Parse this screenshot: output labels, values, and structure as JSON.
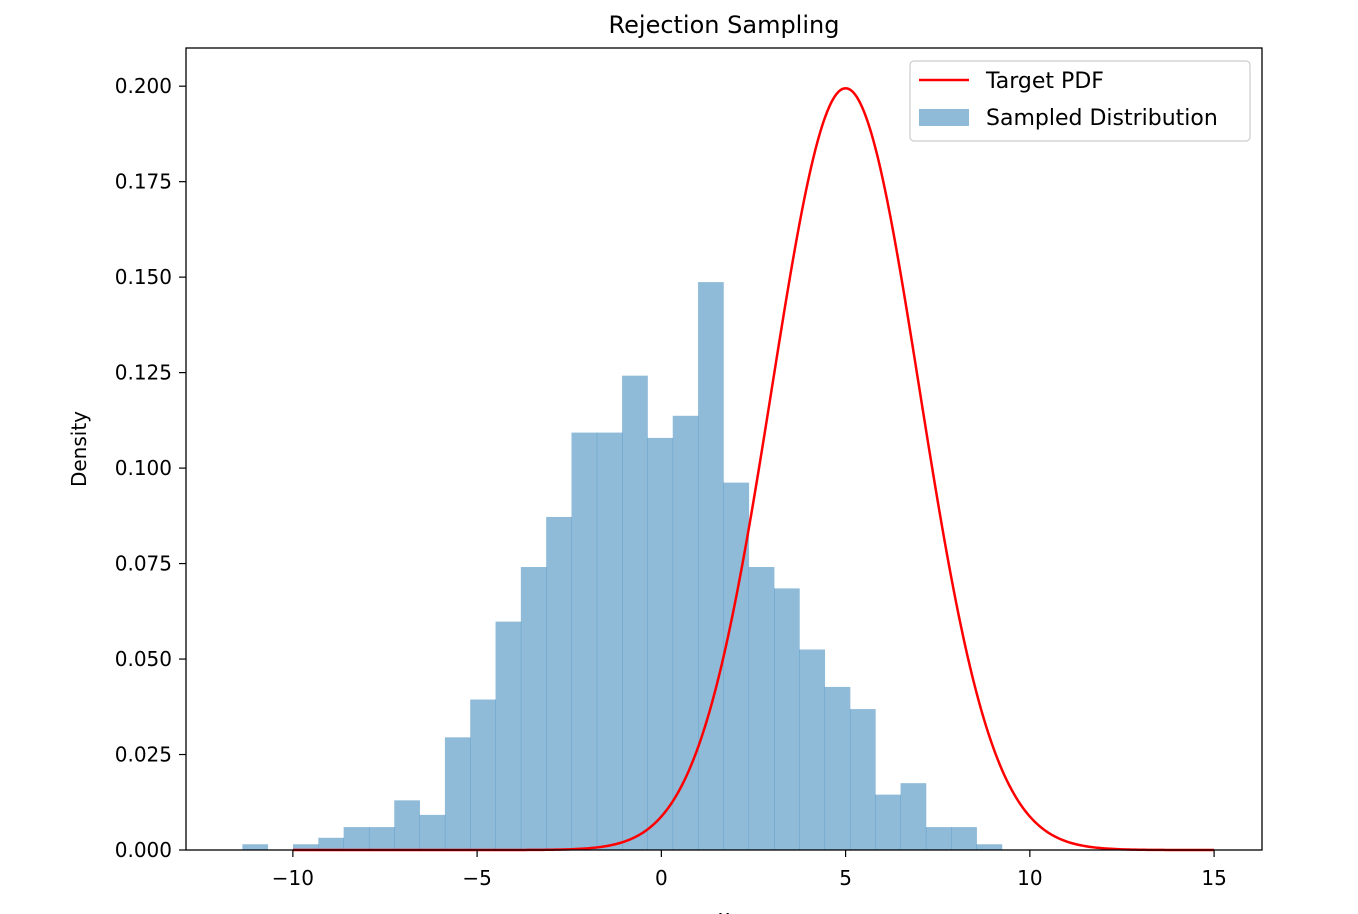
{
  "chart_data": {
    "type": "bar",
    "title": "Rejection Sampling",
    "xlabel": "x",
    "ylabel": "Density",
    "xlim": [
      -12.9,
      16.3
    ],
    "ylim": [
      0,
      0.21
    ],
    "grid": false,
    "legend_position": "top-right",
    "x_ticks": [
      -10,
      -5,
      0,
      5,
      10,
      15
    ],
    "x_tick_labels": [
      "−10",
      "−5",
      "0",
      "5",
      "10",
      "15"
    ],
    "y_ticks": [
      0,
      0.025,
      0.05,
      0.075,
      0.1,
      0.125,
      0.15,
      0.175,
      0.2
    ],
    "y_tick_labels": [
      "0.000",
      "0.025",
      "0.050",
      "0.075",
      "0.100",
      "0.125",
      "0.150",
      "0.175",
      "0.200"
    ],
    "histogram": {
      "name": "Sampled Distribution",
      "color": "#1f77b4",
      "opacity": 0.5,
      "bin_start": -11.37,
      "bin_width": 0.687,
      "values": [
        0.0015,
        0,
        0.0015,
        0.0032,
        0.006,
        0.006,
        0.013,
        0.0092,
        0.0295,
        0.0394,
        0.0598,
        0.0741,
        0.0872,
        0.1093,
        0.1093,
        0.1242,
        0.1079,
        0.1137,
        0.1487,
        0.0962,
        0.0741,
        0.0685,
        0.0525,
        0.0427,
        0.0369,
        0.0145,
        0.0175,
        0.006,
        0.006,
        0.0015
      ]
    },
    "curve": {
      "name": "Target PDF",
      "color": "#ff0000",
      "function": "normal",
      "mean": 5,
      "std": 2,
      "x_range": [
        -10,
        15
      ]
    }
  }
}
